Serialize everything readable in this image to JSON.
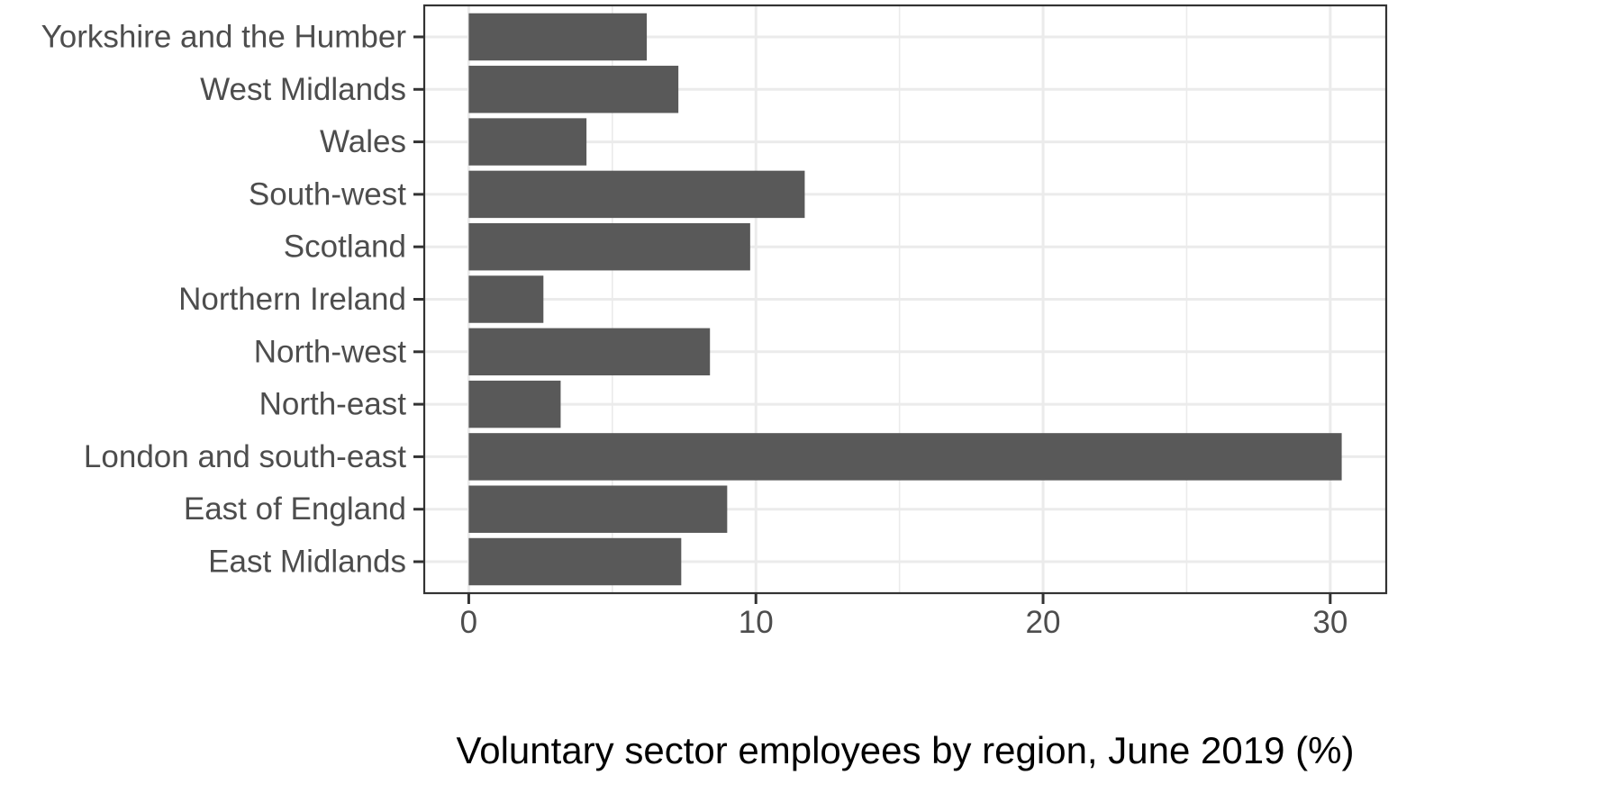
{
  "chart_data": {
    "type": "bar",
    "orientation": "horizontal",
    "categories": [
      "Yorkshire and the Humber",
      "West Midlands",
      "Wales",
      "South-west",
      "Scotland",
      "Northern Ireland",
      "North-west",
      "North-east",
      "London and south-east",
      "East of England",
      "East Midlands"
    ],
    "values": [
      6.2,
      7.3,
      4.1,
      11.7,
      9.8,
      2.6,
      8.4,
      3.2,
      30.4,
      9.0,
      7.4
    ],
    "xlabel": "Voluntary sector employees by region, June 2019 (%)",
    "ylabel": "",
    "xlim": [
      -1.55,
      31.95
    ],
    "x_ticks": [
      0,
      10,
      20,
      30
    ],
    "x_tick_labels": [
      "0",
      "10",
      "20",
      "30"
    ],
    "grid": true,
    "legend": "none",
    "colors": {
      "bar": "#595959",
      "grid": "#ebebeb",
      "panel_border": "#333333",
      "tick_text": "#4d4d4d",
      "title_text": "#000000",
      "background": "#ffffff"
    }
  }
}
